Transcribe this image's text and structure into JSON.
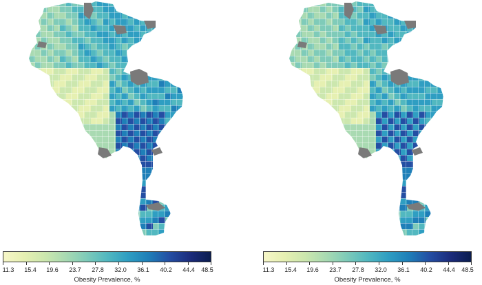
{
  "maps": [
    {
      "id": "left",
      "legend": {
        "ticks": [
          "11.3",
          "15.4",
          "19.6",
          "23.7",
          "27.8",
          "32.0",
          "36.1",
          "40.2",
          "44.4",
          "48.5"
        ],
        "title": "Obesity Prevalence, %"
      }
    },
    {
      "id": "right",
      "legend": {
        "ticks": [
          "11.3",
          "15.4",
          "19.6",
          "23.7",
          "27.8",
          "32.0",
          "36.1",
          "40.2",
          "44.4",
          "48.5"
        ],
        "title": "Obesity Prevalence, %"
      }
    }
  ],
  "colors": {
    "scale": [
      "#f7f7c8",
      "#e6f0b2",
      "#cce7ae",
      "#a9dab2",
      "#7fcbb9",
      "#52b8c0",
      "#2f9ec2",
      "#1f7fb8",
      "#244ea3",
      "#1c2c7c",
      "#0b1d4f"
    ],
    "missing": "#7a7a7a",
    "background": "#ffffff"
  }
}
